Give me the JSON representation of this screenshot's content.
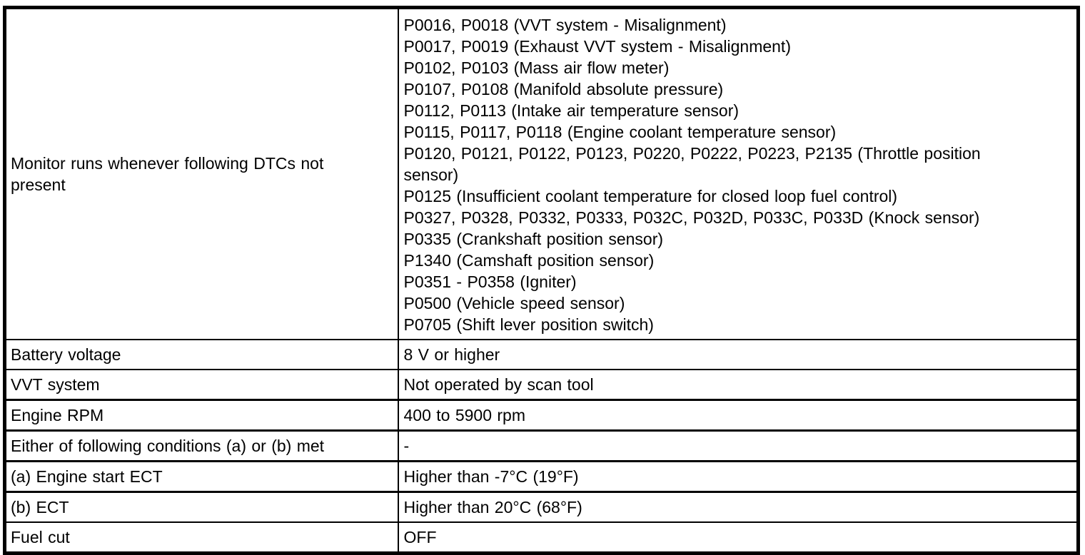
{
  "document": {
    "type": "monitor-conditions-table",
    "colors": {
      "border": "#000000",
      "background": "#ffffff",
      "text": "#000000"
    },
    "table": {
      "rows": [
        {
          "label": "Monitor runs whenever following DTCs not present",
          "value": "P0016, P0018 (VVT system - Misalignment)\nP0017, P0019 (Exhaust VVT system - Misalignment)\nP0102, P0103 (Mass air flow meter)\nP0107, P0108 (Manifold absolute pressure)\nP0112, P0113 (Intake air temperature sensor)\nP0115, P0117, P0118 (Engine coolant temperature sensor)\nP0120, P0121, P0122, P0123, P0220, P0222, P0223, P2135 (Throttle position sensor)\nP0125 (Insufficient coolant temperature for closed loop fuel control)\nP0327, P0328, P0332, P0333, P032C, P032D, P033C, P033D (Knock sensor)\nP0335 (Crankshaft position sensor)\nP1340 (Camshaft position sensor)\nP0351 - P0358 (Igniter)\nP0500 (Vehicle speed sensor)\nP0705 (Shift lever position switch)"
        },
        {
          "label": "Battery voltage",
          "value": "8 V or higher"
        },
        {
          "label": "VVT system",
          "value": "Not operated by scan tool"
        },
        {
          "label": "Engine RPM",
          "value": "400 to 5900 rpm"
        },
        {
          "label": "Either of following conditions (a) or (b) met",
          "value": "-"
        },
        {
          "label": "(a) Engine start ECT",
          "value": "Higher than -7°C (19°F)"
        },
        {
          "label": "(b) ECT",
          "value": "Higher than 20°C (68°F)"
        },
        {
          "label": "Fuel cut",
          "value": "OFF"
        }
      ]
    }
  }
}
